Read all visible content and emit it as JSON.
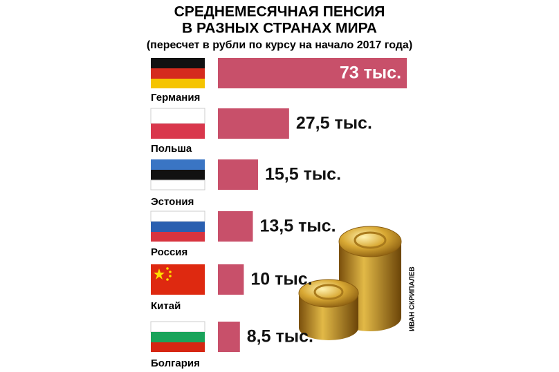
{
  "chart_data": {
    "type": "bar",
    "title": [
      "СРЕДНЕМЕСЯЧНАЯ ПЕНСИЯ",
      "В РАЗНЫХ СТРАНАХ МИРА"
    ],
    "subtitle": "(пересчет в рубли по курсу на начало 2017 года)",
    "categories": [
      "Германия",
      "Польша",
      "Эстония",
      "Россия",
      "Китай",
      "Болгария"
    ],
    "values": [
      73,
      27.5,
      15.5,
      13.5,
      10,
      8.5
    ],
    "value_labels": [
      "73 тыс.",
      "27,5 тыс.",
      "15,5 тыс.",
      "13,5 тыс.",
      "10 тыс.",
      "8,5 тыс."
    ],
    "color": "#c8506a",
    "credit": "ИВАН СКРИПАЛЕВ"
  }
}
